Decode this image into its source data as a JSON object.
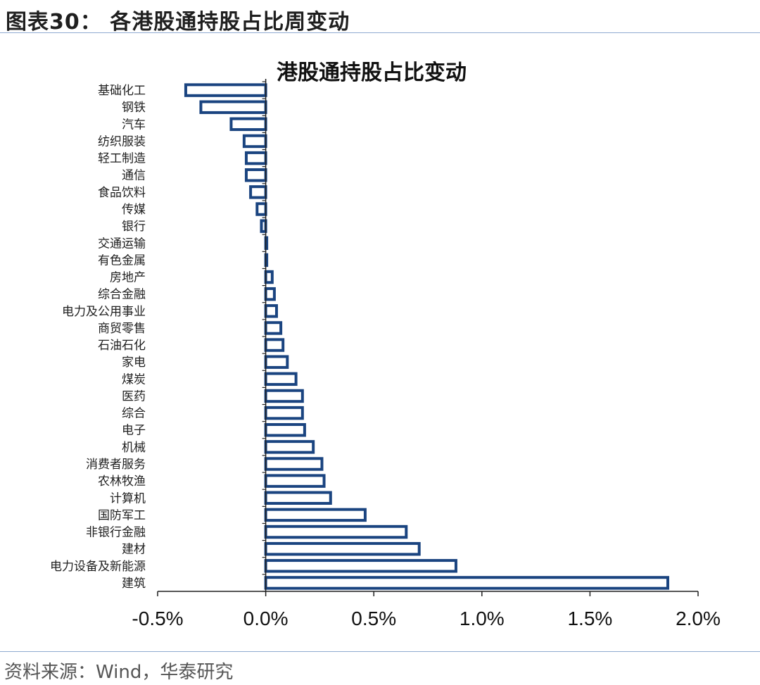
{
  "header": {
    "title": "图表30：  各港股通持股占比周变动"
  },
  "footer": {
    "source": "资料来源：Wind，华泰研究"
  },
  "chart_data": {
    "type": "bar",
    "orientation": "horizontal",
    "title": "港股通持股占比变动",
    "xlabel": "",
    "ylabel": "",
    "xlim": [
      -0.5,
      2.0
    ],
    "xticks": [
      -0.5,
      0.0,
      0.5,
      1.0,
      1.5,
      2.0
    ],
    "xtick_labels": [
      "-0.5%",
      "0.0%",
      "0.5%",
      "1.0%",
      "1.5%",
      "2.0%"
    ],
    "grid": false,
    "bar_fill": "#ffffff",
    "bar_stroke": "#1a4480",
    "categories": [
      "基础化工",
      "钢铁",
      "汽车",
      "纺织服装",
      "轻工制造",
      "通信",
      "食品饮料",
      "传媒",
      "银行",
      "交通运输",
      "有色金属",
      "房地产",
      "综合金融",
      "电力及公用事业",
      "商贸零售",
      "石油石化",
      "家电",
      "煤炭",
      "医药",
      "综合",
      "电子",
      "机械",
      "消费者服务",
      "农林牧渔",
      "计算机",
      "国防军工",
      "非银行金融",
      "建材",
      "电力设备及新能源",
      "建筑"
    ],
    "values": [
      -0.37,
      -0.3,
      -0.16,
      -0.1,
      -0.09,
      -0.09,
      -0.07,
      -0.04,
      -0.02,
      0.0,
      0.0,
      0.03,
      0.04,
      0.05,
      0.07,
      0.08,
      0.1,
      0.14,
      0.17,
      0.17,
      0.18,
      0.22,
      0.26,
      0.27,
      0.3,
      0.46,
      0.65,
      0.71,
      0.88,
      1.86
    ],
    "unit": "%"
  }
}
